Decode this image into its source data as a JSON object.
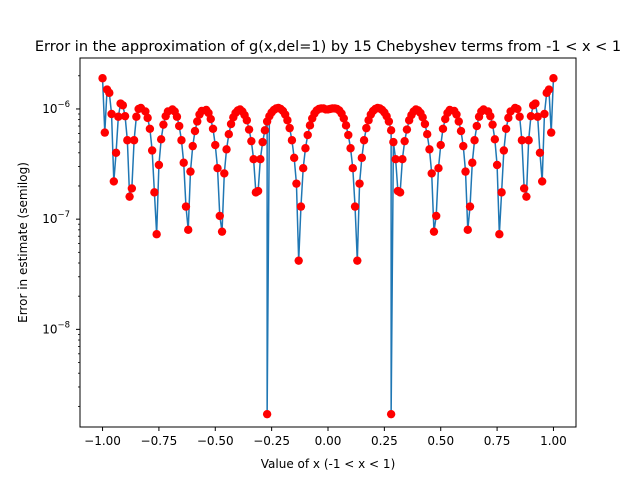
{
  "chart_data": {
    "type": "line",
    "title": "Error in the approximation of g(x,del=1) by 15 Chebyshev terms from -1 < x < 1",
    "xlabel": "Value of x (-1 < x < 1)",
    "ylabel": "Error in estimate (semilog)",
    "xlim": [
      -1.1,
      1.1
    ],
    "ylim": [
      1.3e-09,
      2.9e-06
    ],
    "y_scale": "log",
    "x_ticks": [
      -1.0,
      -0.75,
      -0.5,
      -0.25,
      0.0,
      0.25,
      0.5,
      0.75,
      1.0
    ],
    "x_tick_labels": [
      "−1.00",
      "−0.75",
      "−0.50",
      "−0.25",
      "0.00",
      "0.25",
      "0.50",
      "0.75",
      "1.00"
    ],
    "y_ticks": [
      1e-08,
      1e-07,
      1e-06
    ],
    "y_tick_labels": [
      {
        "base": "10",
        "exp": "−8"
      },
      {
        "base": "10",
        "exp": "−7"
      },
      {
        "base": "10",
        "exp": "−6"
      }
    ],
    "grid": false,
    "series": [
      {
        "line_color": "#1f77b4",
        "marker_color": "#ff0000",
        "marker": "circle",
        "points": [
          [
            -1.0,
            1.9e-06
          ],
          [
            -0.99,
            6.1e-07
          ],
          [
            -0.98,
            1.5e-06
          ],
          [
            -0.97,
            1.4e-06
          ],
          [
            -0.96,
            9e-07
          ],
          [
            -0.95,
            2.2e-07
          ],
          [
            -0.94,
            4e-07
          ],
          [
            -0.93,
            8.5e-07
          ],
          [
            -0.92,
            1.12e-06
          ],
          [
            -0.91,
            1.08e-06
          ],
          [
            -0.9,
            8.6e-07
          ],
          [
            -0.89,
            5.2e-07
          ],
          [
            -0.88,
            1.6e-07
          ],
          [
            -0.87,
            1.9e-07
          ],
          [
            -0.86,
            5.2e-07
          ],
          [
            -0.85,
            8.5e-07
          ],
          [
            -0.84,
            1e-06
          ],
          [
            -0.83,
            1.02e-06
          ],
          [
            -0.81,
            9.5e-07
          ],
          [
            -0.8,
            8.3e-07
          ],
          [
            -0.79,
            6.6e-07
          ],
          [
            -0.78,
            4.2e-07
          ],
          [
            -0.77,
            1.75e-07
          ],
          [
            -0.76,
            7.3e-08
          ],
          [
            -0.75,
            3.1e-07
          ],
          [
            -0.74,
            5.3e-07
          ],
          [
            -0.73,
            7.2e-07
          ],
          [
            -0.72,
            8.6e-07
          ],
          [
            -0.71,
            9.5e-07
          ],
          [
            -0.69,
            9.9e-07
          ],
          [
            -0.68,
            9.5e-07
          ],
          [
            -0.67,
            8.5e-07
          ],
          [
            -0.66,
            7e-07
          ],
          [
            -0.65,
            5.2e-07
          ],
          [
            -0.64,
            3.25e-07
          ],
          [
            -0.63,
            1.3e-07
          ],
          [
            -0.62,
            8e-08
          ],
          [
            -0.61,
            2.7e-07
          ],
          [
            -0.6,
            4.6e-07
          ],
          [
            -0.59,
            6.3e-07
          ],
          [
            -0.58,
            7.7e-07
          ],
          [
            -0.57,
            8.9e-07
          ],
          [
            -0.56,
            9.6e-07
          ],
          [
            -0.54,
            9.8e-07
          ],
          [
            -0.53,
            9.2e-07
          ],
          [
            -0.52,
            8.1e-07
          ],
          [
            -0.51,
            6.6e-07
          ],
          [
            -0.5,
            4.7e-07
          ],
          [
            -0.49,
            2.9e-07
          ],
          [
            -0.48,
            1.07e-07
          ],
          [
            -0.47,
            7.7e-08
          ],
          [
            -0.46,
            2.6e-07
          ],
          [
            -0.45,
            4.3e-07
          ],
          [
            -0.44,
            5.9e-07
          ],
          [
            -0.43,
            7.3e-07
          ],
          [
            -0.42,
            8.4e-07
          ],
          [
            -0.41,
            9.2e-07
          ],
          [
            -0.4,
            9.7e-07
          ],
          [
            -0.39,
            9.9e-07
          ],
          [
            -0.38,
            9.5e-07
          ],
          [
            -0.37,
            8.8e-07
          ],
          [
            -0.36,
            7.9e-07
          ],
          [
            -0.35,
            6.5e-07
          ],
          [
            -0.34,
            5.1e-07
          ],
          [
            -0.33,
            3.5e-07
          ],
          [
            -0.32,
            1.75e-07
          ],
          [
            -0.31,
            1.8e-07
          ],
          [
            -0.3,
            3.5e-07
          ],
          [
            -0.29,
            5e-07
          ],
          [
            -0.28,
            6.4e-07
          ],
          [
            -0.27,
            7.7e-07
          ],
          [
            -0.26,
            8.6e-07
          ],
          [
            -0.25,
            9.3e-07
          ],
          [
            -0.24,
            9.8e-07
          ],
          [
            -0.23,
            1.01e-06
          ],
          [
            -0.22,
            1.02e-06
          ],
          [
            -0.21,
            1e-06
          ],
          [
            -0.2,
            9.6e-07
          ],
          [
            -0.19,
            8.9e-07
          ],
          [
            -0.18,
            7.9e-07
          ],
          [
            -0.17,
            6.7e-07
          ],
          [
            -0.16,
            5.2e-07
          ],
          [
            -0.15,
            3.6e-07
          ],
          [
            -0.14,
            2.1e-07
          ],
          [
            -0.13,
            4.2e-08
          ],
          [
            -0.12,
            1.3e-07
          ],
          [
            -0.11,
            2.9e-07
          ],
          [
            -0.1,
            4.4e-07
          ],
          [
            -0.09,
            5.8e-07
          ],
          [
            -0.08,
            7.1e-07
          ],
          [
            -0.07,
            8.2e-07
          ],
          [
            -0.06,
            9.1e-07
          ],
          [
            -0.05,
            9.7e-07
          ],
          [
            -0.04,
            1e-06
          ],
          [
            -0.03,
            1.01e-06
          ],
          [
            -0.02,
            1.01e-06
          ],
          [
            -0.01,
            9.9e-07
          ],
          [
            0.0,
            9.9e-07
          ],
          [
            0.01,
            1e-06
          ],
          [
            0.02,
            1.01e-06
          ],
          [
            0.03,
            1.01e-06
          ],
          [
            0.04,
            1e-06
          ],
          [
            0.05,
            9.7e-07
          ],
          [
            0.06,
            9.1e-07
          ],
          [
            0.07,
            8.2e-07
          ],
          [
            0.08,
            7.1e-07
          ],
          [
            0.09,
            5.8e-07
          ],
          [
            0.1,
            4.4e-07
          ],
          [
            0.11,
            2.9e-07
          ],
          [
            0.12,
            1.3e-07
          ],
          [
            0.13,
            4.2e-08
          ],
          [
            0.14,
            2.1e-07
          ],
          [
            0.15,
            3.6e-07
          ],
          [
            0.16,
            5.2e-07
          ],
          [
            0.17,
            6.7e-07
          ],
          [
            0.18,
            7.9e-07
          ],
          [
            0.19,
            8.9e-07
          ],
          [
            0.2,
            9.6e-07
          ],
          [
            0.21,
            1e-06
          ],
          [
            0.22,
            1.02e-06
          ],
          [
            0.23,
            1.01e-06
          ],
          [
            0.24,
            9.8e-07
          ],
          [
            0.25,
            9.3e-07
          ],
          [
            0.26,
            8.6e-07
          ],
          [
            0.27,
            7.7e-07
          ],
          [
            0.28,
            6.4e-07
          ],
          [
            0.29,
            5e-07
          ],
          [
            0.3,
            3.5e-07
          ],
          [
            0.31,
            1.8e-07
          ],
          [
            0.32,
            1.75e-07
          ],
          [
            0.33,
            3.5e-07
          ],
          [
            0.34,
            5.1e-07
          ],
          [
            0.35,
            6.5e-07
          ],
          [
            0.36,
            7.9e-07
          ],
          [
            0.37,
            8.8e-07
          ],
          [
            0.38,
            9.5e-07
          ],
          [
            0.39,
            9.9e-07
          ],
          [
            0.4,
            9.7e-07
          ],
          [
            0.41,
            9.2e-07
          ],
          [
            0.42,
            8.4e-07
          ],
          [
            0.43,
            7.3e-07
          ],
          [
            0.44,
            5.9e-07
          ],
          [
            0.45,
            4.3e-07
          ],
          [
            0.46,
            2.6e-07
          ],
          [
            0.47,
            7.7e-08
          ],
          [
            0.48,
            1.07e-07
          ],
          [
            0.49,
            2.9e-07
          ],
          [
            0.5,
            4.7e-07
          ],
          [
            0.51,
            6.6e-07
          ],
          [
            0.52,
            8.1e-07
          ],
          [
            0.53,
            9.2e-07
          ],
          [
            0.54,
            9.8e-07
          ],
          [
            0.56,
            9.6e-07
          ],
          [
            0.57,
            8.9e-07
          ],
          [
            0.58,
            7.7e-07
          ],
          [
            0.59,
            6.3e-07
          ],
          [
            0.6,
            4.6e-07
          ],
          [
            0.61,
            2.7e-07
          ],
          [
            0.62,
            8e-08
          ],
          [
            0.63,
            1.3e-07
          ],
          [
            0.64,
            3.25e-07
          ],
          [
            0.65,
            5.2e-07
          ],
          [
            0.66,
            7e-07
          ],
          [
            0.67,
            8.5e-07
          ],
          [
            0.68,
            9.5e-07
          ],
          [
            0.69,
            9.9e-07
          ],
          [
            0.71,
            9.5e-07
          ],
          [
            0.72,
            8.6e-07
          ],
          [
            0.73,
            7.2e-07
          ],
          [
            0.74,
            5.3e-07
          ],
          [
            0.75,
            3.1e-07
          ],
          [
            0.76,
            7.3e-08
          ],
          [
            0.77,
            1.75e-07
          ],
          [
            0.78,
            4.2e-07
          ],
          [
            0.79,
            6.6e-07
          ],
          [
            0.8,
            8.3e-07
          ],
          [
            0.81,
            9.5e-07
          ],
          [
            0.83,
            1.02e-06
          ],
          [
            0.84,
            1e-06
          ],
          [
            0.85,
            8.5e-07
          ],
          [
            0.86,
            5.2e-07
          ],
          [
            0.87,
            1.9e-07
          ],
          [
            0.88,
            1.6e-07
          ],
          [
            0.89,
            5.2e-07
          ],
          [
            0.9,
            8.6e-07
          ],
          [
            0.91,
            1.08e-06
          ],
          [
            0.92,
            1.12e-06
          ],
          [
            0.93,
            8.5e-07
          ],
          [
            0.94,
            4e-07
          ],
          [
            0.95,
            2.2e-07
          ],
          [
            0.96,
            9e-07
          ],
          [
            0.97,
            1.4e-06
          ],
          [
            0.98,
            1.5e-06
          ],
          [
            0.99,
            6.1e-07
          ],
          [
            1.0,
            1.9e-06
          ]
        ],
        "spikes": [
          [
            -0.27,
            1.7e-09
          ],
          [
            0.28,
            1.7e-09
          ]
        ]
      }
    ]
  }
}
